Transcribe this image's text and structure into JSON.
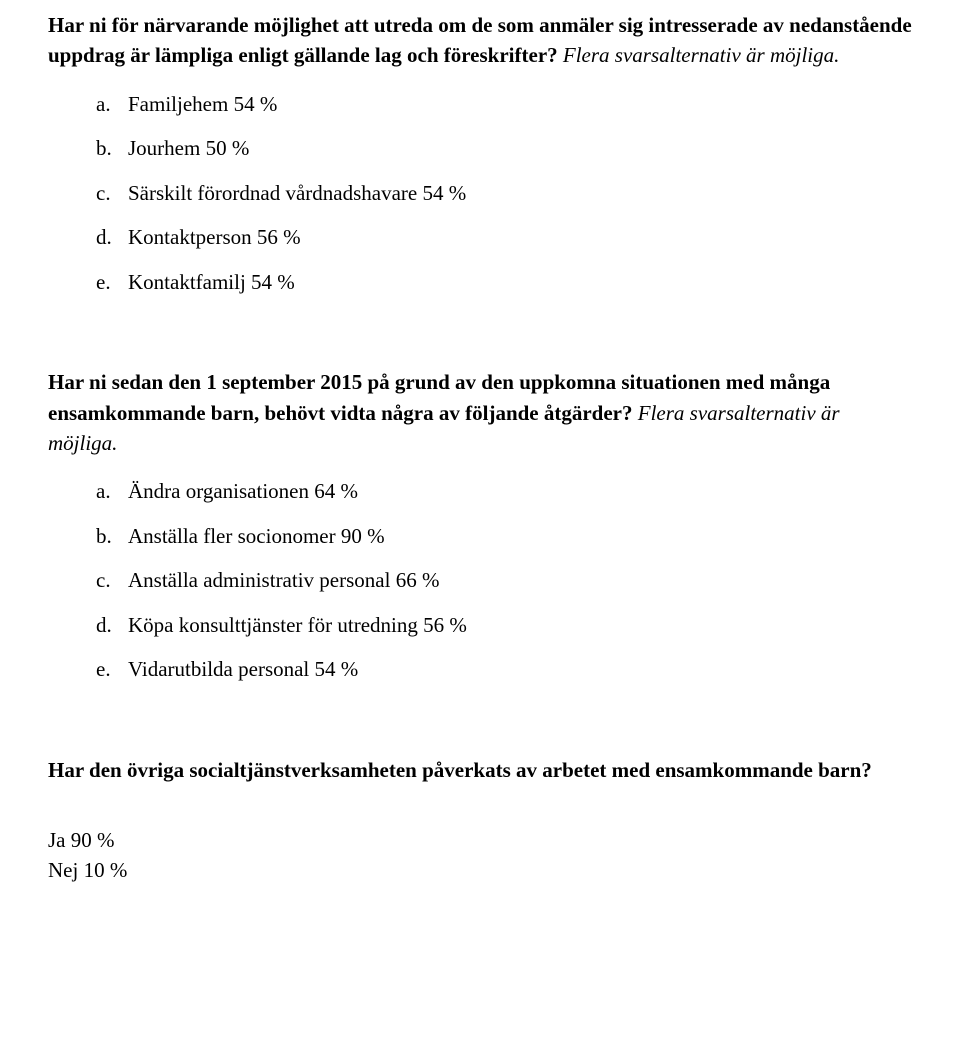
{
  "q1": {
    "text": "Har ni för närvarande möjlighet att utreda om de som anmäler sig intresserade av nedanstående uppdrag är lämpliga enligt gällande lag och föreskrifter?",
    "subnote": " Flera svarsalternativ är möjliga.",
    "options": [
      {
        "letter": "a.",
        "text": "Familjehem 54 %"
      },
      {
        "letter": "b.",
        "text": "Jourhem 50 %"
      },
      {
        "letter": "c.",
        "text": "Särskilt förordnad vårdnadshavare 54 %"
      },
      {
        "letter": "d.",
        "text": "Kontaktperson 56 %"
      },
      {
        "letter": "e.",
        "text": "Kontaktfamilj 54 %"
      }
    ]
  },
  "q2": {
    "text": "Har ni sedan den 1 september 2015 på grund av den uppkomna situationen med många ensamkommande barn, behövt vidta några av följande åtgärder?",
    "subnote": " Flera svarsalternativ är möjliga.",
    "options": [
      {
        "letter": "a.",
        "text": "Ändra organisationen 64 %"
      },
      {
        "letter": "b.",
        "text": "Anställa fler socionomer 90 %"
      },
      {
        "letter": "c.",
        "text": "Anställa administrativ personal 66 %"
      },
      {
        "letter": "d.",
        "text": "Köpa konsulttjänster för utredning 56 %"
      },
      {
        "letter": "e.",
        "text": "Vidarutbilda personal 54 %"
      }
    ]
  },
  "q3": {
    "text": "Har den övriga socialtjänstverksamheten påverkats av arbetet med ensamkommande barn?",
    "answers": [
      "Ja 90 %",
      "Nej 10 %"
    ]
  }
}
